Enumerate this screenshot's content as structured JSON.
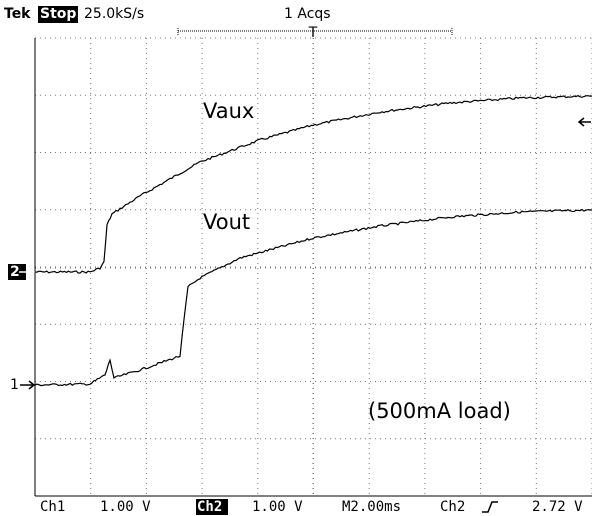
{
  "header": {
    "brand": "Tek",
    "state": "Stop:",
    "rate": "25.0kS/s",
    "acquisitions": "1 Acqs",
    "trigger_position": "T"
  },
  "markers": {
    "ch2": "2",
    "ch1": "1"
  },
  "traces": {
    "upper": "Vaux",
    "lower": "Vout"
  },
  "annotation": "(500mA load)",
  "footer": {
    "ch1": "Ch1",
    "ch1_scale": "1.00 V",
    "ch2": "Ch2",
    "ch2_scale": "1.00 V",
    "timebase": "M2.00ms",
    "trigger_source": "Ch2",
    "trigger_level": "2.72 V"
  }
}
